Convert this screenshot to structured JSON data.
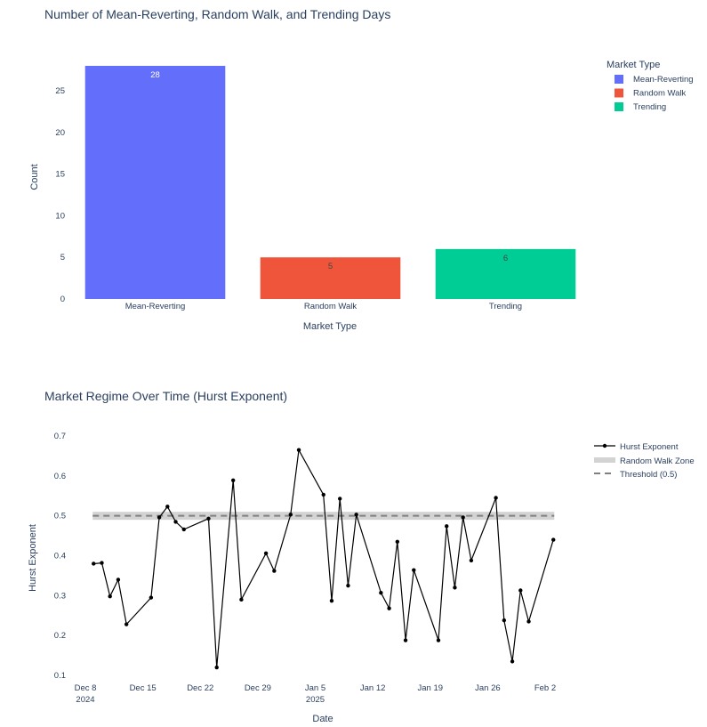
{
  "chart_data": [
    {
      "type": "bar",
      "title": "Number of Mean-Reverting, Random Walk, and Trending Days",
      "xlabel": "Market Type",
      "ylabel": "Count",
      "categories": [
        "Mean-Reverting",
        "Random Walk",
        "Trending"
      ],
      "values": [
        28,
        5,
        6
      ],
      "data_labels": [
        "28",
        "5",
        "6"
      ],
      "colors": [
        "#636efa",
        "#ef553b",
        "#00cc96"
      ],
      "ylim": [
        0,
        28
      ],
      "yticks": [
        0,
        5,
        10,
        15,
        20,
        25
      ],
      "legend": {
        "title": "Market Type",
        "placement": "top-right",
        "entries": [
          "Mean-Reverting",
          "Random Walk",
          "Trending"
        ]
      }
    },
    {
      "type": "line",
      "title": "Market Regime Over Time (Hurst Exponent)",
      "xlabel": "Date",
      "ylabel": "Hurst Exponent",
      "x_ticks": [
        {
          "date": "2024-12-08",
          "label": "Dec 8",
          "sub": "2024"
        },
        {
          "date": "2024-12-15",
          "label": "Dec 15",
          "sub": ""
        },
        {
          "date": "2024-12-22",
          "label": "Dec 22",
          "sub": ""
        },
        {
          "date": "2024-12-29",
          "label": "Dec 29",
          "sub": ""
        },
        {
          "date": "2025-01-05",
          "label": "Jan 5",
          "sub": "2025"
        },
        {
          "date": "2025-01-12",
          "label": "Jan 12",
          "sub": ""
        },
        {
          "date": "2025-01-19",
          "label": "Jan 19",
          "sub": ""
        },
        {
          "date": "2025-01-26",
          "label": "Jan 26",
          "sub": ""
        },
        {
          "date": "2025-02-02",
          "label": "Feb 2",
          "sub": ""
        }
      ],
      "yticks": [
        0.1,
        0.2,
        0.3,
        0.4,
        0.5,
        0.6,
        0.7
      ],
      "ylim": [
        0.1,
        0.7
      ],
      "xlim": [
        "2024-12-07",
        "2025-02-03"
      ],
      "series": [
        {
          "name": "Hurst Exponent",
          "color": "#000000",
          "points": [
            {
              "x": "2024-12-09",
              "y": 0.38
            },
            {
              "x": "2024-12-10",
              "y": 0.382
            },
            {
              "x": "2024-12-11",
              "y": 0.298
            },
            {
              "x": "2024-12-12",
              "y": 0.34
            },
            {
              "x": "2024-12-13",
              "y": 0.228
            },
            {
              "x": "2024-12-16",
              "y": 0.295
            },
            {
              "x": "2024-12-17",
              "y": 0.496
            },
            {
              "x": "2024-12-18",
              "y": 0.523
            },
            {
              "x": "2024-12-19",
              "y": 0.485
            },
            {
              "x": "2024-12-20",
              "y": 0.466
            },
            {
              "x": "2024-12-23",
              "y": 0.493
            },
            {
              "x": "2024-12-24",
              "y": 0.12
            },
            {
              "x": "2024-12-26",
              "y": 0.589
            },
            {
              "x": "2024-12-27",
              "y": 0.29
            },
            {
              "x": "2024-12-30",
              "y": 0.406
            },
            {
              "x": "2024-12-31",
              "y": 0.362
            },
            {
              "x": "2025-01-02",
              "y": 0.503
            },
            {
              "x": "2025-01-03",
              "y": 0.665
            },
            {
              "x": "2025-01-06",
              "y": 0.553
            },
            {
              "x": "2025-01-07",
              "y": 0.287
            },
            {
              "x": "2025-01-08",
              "y": 0.543
            },
            {
              "x": "2025-01-09",
              "y": 0.325
            },
            {
              "x": "2025-01-10",
              "y": 0.503
            },
            {
              "x": "2025-01-13",
              "y": 0.307
            },
            {
              "x": "2025-01-14",
              "y": 0.268
            },
            {
              "x": "2025-01-15",
              "y": 0.435
            },
            {
              "x": "2025-01-16",
              "y": 0.188
            },
            {
              "x": "2025-01-17",
              "y": 0.364
            },
            {
              "x": "2025-01-20",
              "y": 0.188
            },
            {
              "x": "2025-01-21",
              "y": 0.474
            },
            {
              "x": "2025-01-22",
              "y": 0.32
            },
            {
              "x": "2025-01-23",
              "y": 0.496
            },
            {
              "x": "2025-01-24",
              "y": 0.388
            },
            {
              "x": "2025-01-27",
              "y": 0.545
            },
            {
              "x": "2025-01-28",
              "y": 0.238
            },
            {
              "x": "2025-01-29",
              "y": 0.135
            },
            {
              "x": "2025-01-30",
              "y": 0.313
            },
            {
              "x": "2025-01-31",
              "y": 0.235
            },
            {
              "x": "2025-02-03",
              "y": 0.44
            }
          ]
        }
      ],
      "random_walk_zone": {
        "name": "Random Walk Zone",
        "y0": 0.49,
        "y1": 0.51,
        "color": "#d3d3d3"
      },
      "threshold": {
        "name": "Threshold (0.5)",
        "y": 0.5,
        "color": "#808080"
      },
      "legend": {
        "placement": "top-right",
        "entries": [
          "Hurst Exponent",
          "Random Walk Zone",
          "Threshold (0.5)"
        ]
      }
    }
  ]
}
